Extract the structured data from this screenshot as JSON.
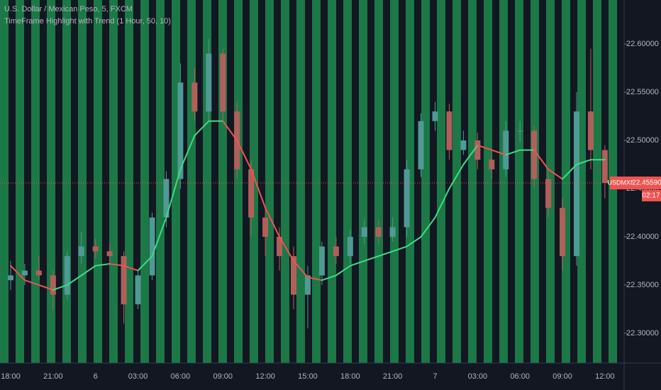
{
  "chart_data": {
    "type": "candlestick",
    "title": "U.S. Dollar / Mexican Peso, 5, FXCM",
    "subtitle": "TimeFrame Highlight with Trend (1 Hour, 50, 10)",
    "categories": [
      "18:00",
      null,
      null,
      "21:00",
      null,
      null,
      "6",
      null,
      null,
      "03:00",
      null,
      null,
      "06:00",
      null,
      null,
      "09:00",
      null,
      null,
      "12:00",
      null,
      null,
      "15:00",
      null,
      null,
      "18:00",
      null,
      null,
      "21:00",
      null,
      null,
      "7",
      null,
      null,
      "03:00",
      null,
      null,
      "06:00",
      null,
      null,
      "09:00",
      null,
      null,
      "12:00"
    ],
    "open": [
      22.355,
      22.36,
      22.365,
      22.36,
      22.34,
      22.38,
      22.39,
      22.385,
      22.38,
      22.33,
      22.36,
      22.42,
      22.46,
      22.56,
      22.53,
      22.59,
      22.53,
      22.47,
      22.42,
      22.4,
      22.38,
      22.34,
      22.36,
      22.39,
      22.38,
      22.4,
      22.41,
      22.4,
      22.41,
      22.47,
      22.52,
      22.53,
      22.49,
      22.5,
      22.48,
      22.47,
      22.51,
      22.51,
      22.46,
      22.43,
      22.38,
      22.53,
      22.49
    ],
    "high": [
      22.375,
      22.372,
      22.38,
      22.365,
      22.385,
      22.405,
      22.398,
      22.392,
      22.385,
      22.365,
      22.425,
      22.468,
      22.58,
      22.575,
      22.605,
      22.595,
      22.54,
      22.48,
      22.43,
      22.41,
      22.39,
      22.37,
      22.395,
      22.4,
      22.408,
      22.418,
      22.418,
      22.42,
      22.48,
      22.528,
      22.54,
      22.538,
      22.51,
      22.508,
      22.49,
      22.52,
      22.52,
      22.515,
      22.47,
      22.44,
      22.55,
      22.595,
      22.495
    ],
    "low": [
      22.345,
      22.35,
      22.355,
      22.325,
      22.335,
      22.372,
      22.378,
      22.37,
      22.31,
      22.325,
      22.355,
      22.41,
      22.45,
      22.52,
      22.52,
      22.52,
      22.46,
      22.4,
      22.38,
      22.365,
      22.325,
      22.305,
      22.35,
      22.372,
      22.372,
      22.392,
      22.392,
      22.395,
      22.4,
      22.462,
      22.51,
      22.48,
      22.485,
      22.47,
      22.46,
      22.462,
      22.498,
      22.45,
      22.42,
      22.365,
      22.37,
      22.47,
      22.44
    ],
    "close": [
      22.36,
      22.365,
      22.36,
      22.34,
      22.38,
      22.39,
      22.385,
      22.38,
      22.33,
      22.36,
      22.42,
      22.46,
      22.56,
      22.53,
      22.59,
      22.53,
      22.47,
      22.42,
      22.4,
      22.38,
      22.34,
      22.36,
      22.39,
      22.38,
      22.4,
      22.41,
      22.4,
      22.41,
      22.47,
      22.52,
      22.53,
      22.49,
      22.5,
      22.48,
      22.47,
      22.51,
      22.51,
      22.46,
      22.43,
      22.38,
      22.53,
      22.49,
      22.4559
    ],
    "up_color": "#4f9a94",
    "down_color": "#b0605a",
    "trend": {
      "values": [
        22.37,
        22.355,
        22.35,
        22.345,
        22.35,
        22.36,
        22.37,
        22.372,
        22.37,
        22.365,
        22.38,
        22.42,
        22.47,
        22.505,
        22.52,
        22.52,
        22.5,
        22.47,
        22.43,
        22.4,
        22.375,
        22.358,
        22.355,
        22.36,
        22.37,
        22.375,
        22.38,
        22.385,
        22.39,
        22.4,
        22.42,
        22.45,
        22.475,
        22.495,
        22.49,
        22.485,
        22.49,
        22.49,
        22.47,
        22.46,
        22.475,
        22.48,
        22.48
      ],
      "up_color": "#3ddc84",
      "down_color": "#ef5350"
    },
    "ylim": [
      22.2691,
      22.6456
    ],
    "yticks": [
      {
        "value": 22.3,
        "label": "22.30000"
      },
      {
        "value": 22.35,
        "label": "22.35000"
      },
      {
        "value": 22.4,
        "label": "22.40000"
      },
      {
        "value": 22.45,
        "label": "22.45000"
      },
      {
        "value": 22.5,
        "label": "22.50000"
      },
      {
        "value": 22.55,
        "label": "22.55000"
      },
      {
        "value": 22.6,
        "label": "22.60000"
      }
    ],
    "last_price": {
      "symbol": "USDMXN",
      "value": 22.4559,
      "label": "22.45590",
      "color": "#ef5350"
    },
    "countdown": "02:17",
    "stripe_color": "#1e8a4e"
  }
}
